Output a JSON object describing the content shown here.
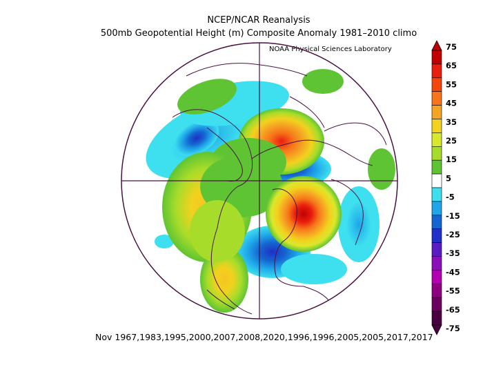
{
  "header": {
    "title": "NCEP/NCAR Reanalysis",
    "subtitle": "500mb Geopotential Height (m) Composite Anomaly 1981–2010 climo",
    "credit": "NOAA Physical Sciences Laboratory"
  },
  "footer": {
    "dates": "Nov 1967,1983,1995,2000,2007,2008,2020,1996,1996,2005,2005,2017,2017"
  },
  "colorbar": {
    "labels": [
      "75",
      "65",
      "55",
      "45",
      "35",
      "25",
      "15",
      "5",
      "-5",
      "-15",
      "-25",
      "-35",
      "-45",
      "-55",
      "-65",
      "-75"
    ],
    "colors": [
      "#c00000",
      "#e81e0e",
      "#f2460d",
      "#f7751a",
      "#f5a423",
      "#f2d21e",
      "#d8e82c",
      "#a7dc2a",
      "#5fc433",
      "#ffffff",
      "#3ee0f0",
      "#1fa5e8",
      "#1565d0",
      "#2030c8",
      "#5a1bc0",
      "#8a10b8",
      "#b000b0",
      "#8e007f",
      "#6a0060",
      "#4a0040"
    ],
    "arrow_top": "#c00000",
    "arrow_bottom": "#4a0040"
  },
  "map": {
    "projection": "north-polar-stereographic",
    "coastline_color": "#4a1040",
    "anomaly_centers": [
      {
        "region": "eastern Canada / Labrador Sea",
        "sign": "positive",
        "peak": 75
      },
      {
        "region": "central Siberia",
        "sign": "positive",
        "peak": 65
      },
      {
        "region": "western North America",
        "sign": "positive",
        "peak": 35
      },
      {
        "region": "eastern Mediterranean / Balkans",
        "sign": "negative",
        "peak": -35
      },
      {
        "region": "Kara Sea / northern Siberia",
        "sign": "negative",
        "peak": -35
      },
      {
        "region": "eastern North Pacific / Gulf of Alaska",
        "sign": "negative",
        "peak": -15
      }
    ]
  }
}
